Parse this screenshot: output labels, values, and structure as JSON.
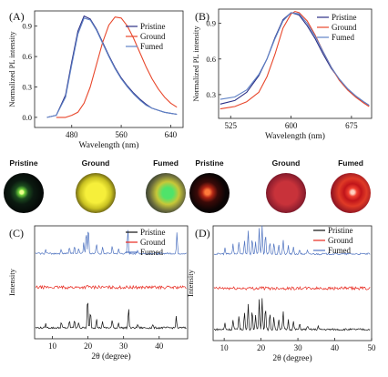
{
  "colors": {
    "pristine": "#2b2f86",
    "ground": "#e8462a",
    "fumed": "#5f82c6",
    "black": "#111111",
    "red": "#e8281e",
    "blue": "#4f73c0"
  },
  "photos": {
    "left": [
      {
        "label": "Pristine",
        "tone": "green-dim"
      },
      {
        "label": "Ground",
        "tone": "yellow"
      },
      {
        "label": "Fumed",
        "tone": "green-mixed"
      }
    ],
    "right": [
      {
        "label": "Pristine",
        "tone": "red-dim"
      },
      {
        "label": "Ground",
        "tone": "red"
      },
      {
        "label": "Fumed",
        "tone": "red-ring"
      }
    ]
  },
  "chart_data": [
    {
      "panel": "(A)",
      "type": "line",
      "ylabel": "Normalized PL intensity",
      "xlabel": "Wavelength (nm)",
      "xlim": [
        420,
        660
      ],
      "ylim": [
        -0.1,
        1.05
      ],
      "xticks": [
        480,
        560,
        640
      ],
      "yticks": [
        0.0,
        0.3,
        0.6,
        0.9
      ],
      "legend": {
        "placement": "top-right",
        "entries": [
          "Pristine",
          "Ground",
          "Fumed"
        ]
      },
      "series": [
        {
          "name": "Pristine",
          "color": "#2b2f86",
          "x": [
            440,
            455,
            470,
            480,
            490,
            500,
            510,
            520,
            530,
            540,
            550,
            560,
            570,
            580,
            590,
            600,
            610,
            620,
            630,
            640,
            650
          ],
          "y": [
            0.0,
            0.02,
            0.22,
            0.55,
            0.85,
            1.0,
            0.97,
            0.87,
            0.74,
            0.61,
            0.49,
            0.39,
            0.31,
            0.24,
            0.18,
            0.13,
            0.09,
            0.07,
            0.05,
            0.04,
            0.03
          ]
        },
        {
          "name": "Ground",
          "color": "#e8462a",
          "x": [
            455,
            470,
            480,
            490,
            500,
            510,
            520,
            530,
            540,
            550,
            560,
            570,
            580,
            590,
            600,
            610,
            620,
            630,
            640,
            650
          ],
          "y": [
            0.0,
            0.0,
            0.02,
            0.05,
            0.14,
            0.3,
            0.52,
            0.74,
            0.91,
            0.99,
            0.98,
            0.9,
            0.78,
            0.64,
            0.5,
            0.38,
            0.28,
            0.2,
            0.14,
            0.1
          ]
        },
        {
          "name": "Fumed",
          "color": "#5f82c6",
          "x": [
            440,
            455,
            470,
            480,
            490,
            500,
            510,
            520,
            530,
            540,
            550,
            560,
            570,
            580,
            590,
            600,
            610,
            620,
            630,
            640,
            650
          ],
          "y": [
            0.0,
            0.02,
            0.2,
            0.52,
            0.82,
            0.98,
            0.96,
            0.86,
            0.73,
            0.6,
            0.48,
            0.38,
            0.3,
            0.23,
            0.17,
            0.12,
            0.09,
            0.07,
            0.05,
            0.04,
            0.03
          ]
        }
      ]
    },
    {
      "panel": "(B)",
      "type": "line",
      "ylabel": "Normalized PL intensity",
      "xlabel": "Wavelength (nm)",
      "xlim": [
        510,
        700
      ],
      "ylim": [
        0.1,
        1.02
      ],
      "xticks": [
        525,
        600,
        675
      ],
      "yticks": [
        0.3,
        0.6,
        0.9
      ],
      "legend": {
        "placement": "top-right",
        "entries": [
          "Pristine",
          "Ground",
          "Fumed"
        ]
      },
      "series": [
        {
          "name": "Pristine",
          "color": "#2b2f86",
          "x": [
            512,
            530,
            545,
            560,
            570,
            580,
            590,
            600,
            610,
            620,
            630,
            640,
            650,
            660,
            670,
            680,
            690,
            697
          ],
          "y": [
            0.22,
            0.25,
            0.32,
            0.46,
            0.6,
            0.78,
            0.93,
            0.99,
            0.97,
            0.88,
            0.77,
            0.64,
            0.52,
            0.43,
            0.35,
            0.29,
            0.24,
            0.21
          ]
        },
        {
          "name": "Ground",
          "color": "#e8462a",
          "x": [
            512,
            530,
            545,
            560,
            570,
            580,
            590,
            600,
            605,
            610,
            620,
            630,
            640,
            650,
            660,
            670,
            680,
            690,
            697
          ],
          "y": [
            0.18,
            0.2,
            0.24,
            0.32,
            0.45,
            0.64,
            0.86,
            0.98,
            1.0,
            0.99,
            0.92,
            0.8,
            0.66,
            0.53,
            0.42,
            0.34,
            0.28,
            0.23,
            0.2
          ]
        },
        {
          "name": "Fumed",
          "color": "#5f82c6",
          "x": [
            512,
            530,
            545,
            560,
            570,
            580,
            590,
            600,
            610,
            620,
            630,
            640,
            650,
            660,
            670,
            680,
            690,
            697
          ],
          "y": [
            0.26,
            0.28,
            0.34,
            0.47,
            0.6,
            0.77,
            0.92,
            0.99,
            0.98,
            0.9,
            0.79,
            0.66,
            0.53,
            0.43,
            0.35,
            0.29,
            0.24,
            0.21
          ]
        }
      ]
    },
    {
      "panel": "(C)",
      "type": "line",
      "ylabel": "Intensity",
      "xlabel": "2θ (degree)",
      "xlim": [
        5,
        48
      ],
      "xticks": [
        10,
        20,
        30,
        40
      ],
      "grid": false,
      "legend": {
        "placement": "top-right",
        "entries": [
          "Pristine",
          "Ground",
          "Fumed"
        ]
      },
      "series": [
        {
          "name": "Pristine",
          "color": "#111111",
          "peaks": [
            [
              8.1,
              0.12
            ],
            [
              12.5,
              0.18
            ],
            [
              14.8,
              0.22
            ],
            [
              16.2,
              0.28
            ],
            [
              17.4,
              0.2
            ],
            [
              19.9,
              1.0
            ],
            [
              20.7,
              0.55
            ],
            [
              22.4,
              0.32
            ],
            [
              24.1,
              0.22
            ],
            [
              26.8,
              0.25
            ],
            [
              28.6,
              0.18
            ],
            [
              31.4,
              0.65
            ],
            [
              34.0,
              0.12
            ],
            [
              38.2,
              0.1
            ],
            [
              44.8,
              0.35
            ]
          ]
        },
        {
          "name": "Ground",
          "color": "#e8281e",
          "peaks": [
            [
              20.0,
              0.12
            ],
            [
              23.0,
              0.08
            ]
          ]
        },
        {
          "name": "Fumed",
          "color": "#4f73c0",
          "peaks": [
            [
              8.1,
              0.14
            ],
            [
              12.5,
              0.16
            ],
            [
              14.8,
              0.24
            ],
            [
              16.2,
              0.3
            ],
            [
              17.4,
              0.22
            ],
            [
              18.8,
              0.4
            ],
            [
              19.5,
              0.85
            ],
            [
              20.1,
              1.0
            ],
            [
              22.4,
              0.35
            ],
            [
              24.1,
              0.22
            ],
            [
              26.8,
              0.25
            ],
            [
              28.6,
              0.15
            ],
            [
              31.2,
              0.9
            ],
            [
              34.0,
              0.12
            ],
            [
              45.0,
              0.75
            ]
          ]
        }
      ]
    },
    {
      "panel": "(D)",
      "type": "line",
      "ylabel": "Intensity",
      "xlabel": "2θ (degree)",
      "xlim": [
        7,
        50
      ],
      "xticks": [
        10,
        20,
        30,
        40,
        50
      ],
      "grid": false,
      "legend": {
        "placement": "top-right",
        "entries": [
          "Pristine",
          "Ground",
          "Fumed"
        ]
      },
      "series": [
        {
          "name": "Pristine",
          "color": "#111111",
          "peaks": [
            [
              10.2,
              0.2
            ],
            [
              12.4,
              0.3
            ],
            [
              14.0,
              0.45
            ],
            [
              15.5,
              0.55
            ],
            [
              16.5,
              0.8
            ],
            [
              17.6,
              0.6
            ],
            [
              18.5,
              0.45
            ],
            [
              19.5,
              0.95
            ],
            [
              20.3,
              1.0
            ],
            [
              21.2,
              0.75
            ],
            [
              22.4,
              0.5
            ],
            [
              23.5,
              0.4
            ],
            [
              24.8,
              0.35
            ],
            [
              26.0,
              0.55
            ],
            [
              27.4,
              0.3
            ],
            [
              28.8,
              0.25
            ],
            [
              30.5,
              0.18
            ],
            [
              32.6,
              0.12
            ],
            [
              35.5,
              0.1
            ]
          ]
        },
        {
          "name": "Ground",
          "color": "#e8281e",
          "peaks": [
            [
              20.0,
              0.1
            ],
            [
              25.0,
              0.06
            ]
          ]
        },
        {
          "name": "Fumed",
          "color": "#4f73c0",
          "peaks": [
            [
              10.2,
              0.2
            ],
            [
              12.4,
              0.35
            ],
            [
              14.0,
              0.45
            ],
            [
              15.5,
              0.5
            ],
            [
              16.5,
              0.85
            ],
            [
              17.6,
              0.55
            ],
            [
              18.5,
              0.45
            ],
            [
              19.5,
              0.9
            ],
            [
              20.3,
              1.0
            ],
            [
              21.2,
              0.7
            ],
            [
              22.4,
              0.45
            ],
            [
              23.5,
              0.38
            ],
            [
              24.8,
              0.3
            ],
            [
              26.0,
              0.5
            ],
            [
              27.4,
              0.3
            ],
            [
              28.8,
              0.22
            ],
            [
              30.5,
              0.15
            ],
            [
              32.6,
              0.12
            ]
          ]
        }
      ]
    }
  ]
}
